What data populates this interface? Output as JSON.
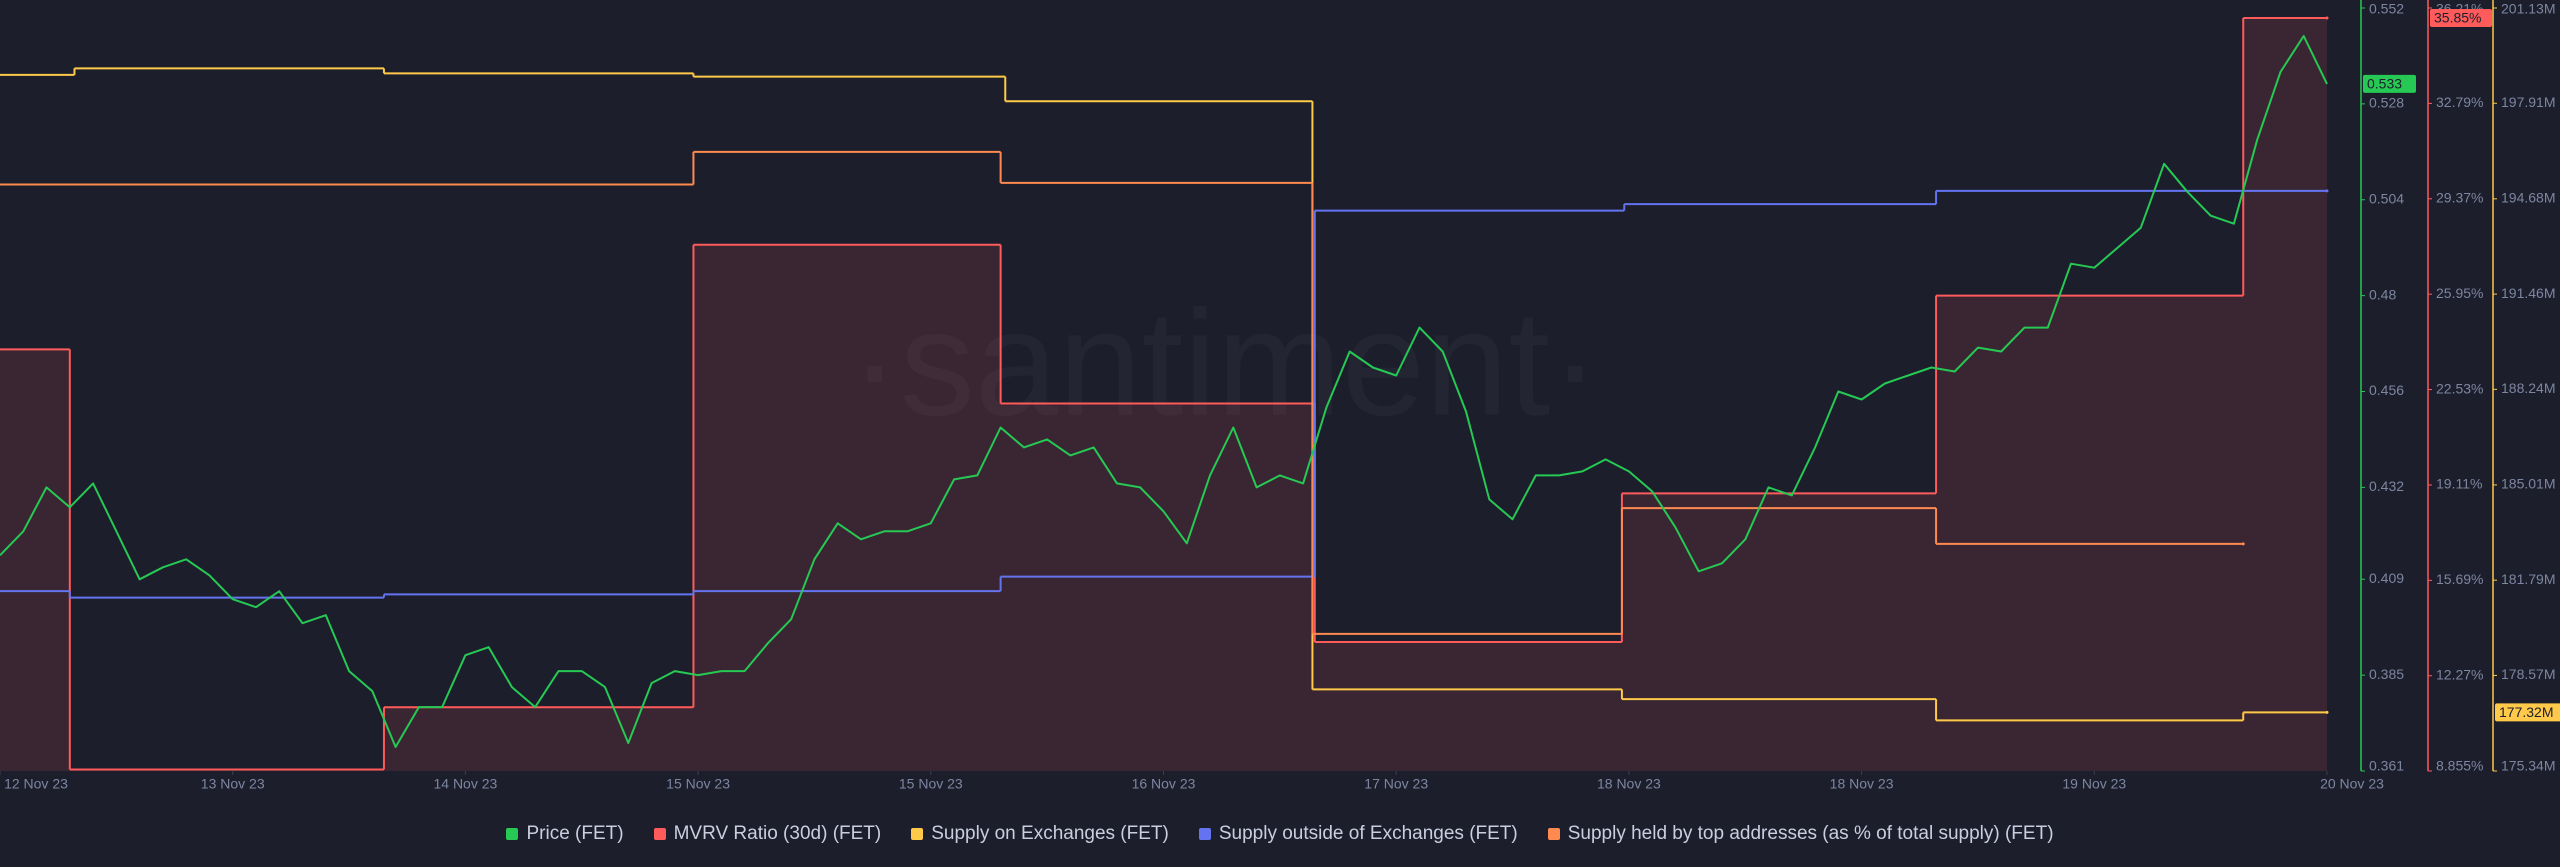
{
  "chart_data": {
    "type": "multi-axis-line",
    "watermark": "·santiment·",
    "xlim": [
      0,
      10
    ],
    "xticks": [
      {
        "value": 0,
        "label": "12 Nov 23"
      },
      {
        "value": 1,
        "label": "13 Nov 23"
      },
      {
        "value": 2,
        "label": "14 Nov 23"
      },
      {
        "value": 3,
        "label": "15 Nov 23"
      },
      {
        "value": 4,
        "label": "15 Nov 23"
      },
      {
        "value": 5,
        "label": "16 Nov 23"
      },
      {
        "value": 6,
        "label": "17 Nov 23"
      },
      {
        "value": 7,
        "label": "18 Nov 23"
      },
      {
        "value": 8,
        "label": "18 Nov 23"
      },
      {
        "value": 9,
        "label": "19 Nov 23"
      },
      {
        "value": 10,
        "label": "20 Nov 23"
      }
    ],
    "ylim": [
      0.361,
      0.552
    ],
    "yticks": [
      0.552,
      0.528,
      0.504,
      0.48,
      0.456,
      0.432,
      0.409,
      0.385,
      0.361
    ],
    "y2lim": [
      8.855,
      36.21
    ],
    "y2ticks": [
      {
        "value": 36.21,
        "label": "36.21%"
      },
      {
        "value": 32.79,
        "label": "32.79%"
      },
      {
        "value": 29.37,
        "label": "29.37%"
      },
      {
        "value": 25.95,
        "label": "25.95%"
      },
      {
        "value": 22.53,
        "label": "22.53%"
      },
      {
        "value": 19.11,
        "label": "19.11%"
      },
      {
        "value": 15.69,
        "label": "15.69%"
      },
      {
        "value": 12.27,
        "label": "12.27%"
      },
      {
        "value": 8.855,
        "label": "8.855%"
      }
    ],
    "y3lim": [
      175.34,
      201.13
    ],
    "y3ticks": [
      {
        "value": 201.13,
        "label": "201.13M"
      },
      {
        "value": 197.91,
        "label": "197.91M"
      },
      {
        "value": 194.68,
        "label": "194.68M"
      },
      {
        "value": 191.46,
        "label": "191.46M"
      },
      {
        "value": 188.24,
        "label": "188.24M"
      },
      {
        "value": 185.01,
        "label": "185.01M"
      },
      {
        "value": 181.79,
        "label": "181.79M"
      },
      {
        "value": 178.57,
        "label": "178.57M"
      },
      {
        "value": 175.34,
        "label": "175.34M"
      }
    ],
    "series": [
      {
        "name": "Price (FET)",
        "color": "#26c953",
        "axis": "y",
        "step": false,
        "last_value_label": "0.533",
        "x": [
          0,
          0.1,
          0.2,
          0.3,
          0.4,
          0.5,
          0.6,
          0.7,
          0.8,
          0.9,
          1,
          1.1,
          1.2,
          1.3,
          1.4,
          1.5,
          1.6,
          1.7,
          1.8,
          1.9,
          2,
          2.1,
          2.2,
          2.3,
          2.4,
          2.5,
          2.6,
          2.7,
          2.8,
          2.9,
          3,
          3.1,
          3.2,
          3.3,
          3.4,
          3.5,
          3.6,
          3.7,
          3.8,
          3.9,
          4,
          4.1,
          4.2,
          4.3,
          4.4,
          4.5,
          4.6,
          4.7,
          4.8,
          4.9,
          5,
          5.1,
          5.2,
          5.3,
          5.4,
          5.5,
          5.6,
          5.7,
          5.8,
          5.9,
          6,
          6.1,
          6.2,
          6.3,
          6.4,
          6.5,
          6.6,
          6.7,
          6.8,
          6.9,
          7,
          7.1,
          7.2,
          7.3,
          7.4,
          7.5,
          7.6,
          7.7,
          7.8,
          7.9,
          8,
          8.1,
          8.2,
          8.3,
          8.4,
          8.5,
          8.6,
          8.7,
          8.8,
          8.9,
          9,
          9.1,
          9.2,
          9.3,
          9.4,
          9.5,
          9.6,
          9.7,
          9.8,
          9.9,
          10
        ],
        "values": [
          0.415,
          0.421,
          0.432,
          0.427,
          0.433,
          0.421,
          0.409,
          0.412,
          0.414,
          0.41,
          0.404,
          0.402,
          0.406,
          0.398,
          0.4,
          0.386,
          0.381,
          0.367,
          0.377,
          0.377,
          0.39,
          0.392,
          0.382,
          0.377,
          0.386,
          0.386,
          0.382,
          0.368,
          0.383,
          0.386,
          0.385,
          0.386,
          0.386,
          0.393,
          0.399,
          0.414,
          0.423,
          0.419,
          0.421,
          0.421,
          0.423,
          0.434,
          0.435,
          0.447,
          0.442,
          0.444,
          0.44,
          0.442,
          0.433,
          0.432,
          0.426,
          0.418,
          0.435,
          0.447,
          0.432,
          0.435,
          0.433,
          0.452,
          0.466,
          0.462,
          0.46,
          0.472,
          0.466,
          0.451,
          0.429,
          0.424,
          0.435,
          0.435,
          0.436,
          0.439,
          0.436,
          0.431,
          0.422,
          0.411,
          0.413,
          0.419,
          0.432,
          0.43,
          0.442,
          0.456,
          0.454,
          0.458,
          0.46,
          0.462,
          0.461,
          0.467,
          0.466,
          0.472,
          0.472,
          0.488,
          0.487,
          0.492,
          0.497,
          0.513,
          0.506,
          0.5,
          0.498,
          0.519,
          0.536,
          0.545,
          0.533
        ]
      },
      {
        "name": "MVRV Ratio (30d) (FET)",
        "color": "#ff5b5b",
        "axis": "y2",
        "step": true,
        "area": true,
        "last_value_label": "35.85%",
        "x": [
          0,
          0.3,
          1.65,
          2.98,
          4.3,
          5.65,
          6.97,
          8.32,
          9.64,
          10
        ],
        "values": [
          23.97,
          8.91,
          11.14,
          27.72,
          22.03,
          13.48,
          18.81,
          25.9,
          35.85,
          35.85
        ]
      },
      {
        "name": "Supply on Exchanges (FET)",
        "color": "#ffc94a",
        "axis": "y3",
        "step": true,
        "last_value_label": "177.32M",
        "x": [
          0,
          0.32,
          1.65,
          2.98,
          4.32,
          5.64,
          6.97,
          8.32,
          9.64,
          10
        ],
        "values": [
          198.87,
          199.09,
          198.92,
          198.81,
          197.98,
          178.1,
          177.77,
          177.05,
          177.32,
          177.32
        ]
      },
      {
        "name": "Supply outside of Exchanges (FET)",
        "color": "#6474f0",
        "axis": "y3",
        "step": true,
        "x": [
          0,
          0.3,
          1.65,
          2.98,
          4.3,
          5.65,
          6.98,
          8.32,
          10
        ],
        "values": [
          181.42,
          181.2,
          181.31,
          181.42,
          181.91,
          194.28,
          194.5,
          194.95,
          194.95
        ]
      },
      {
        "name": "Supply held by top addresses (as % of total supply) (FET)",
        "color": "#ff8a50",
        "axis": "y2",
        "step": true,
        "x": [
          0,
          2.98,
          4.3,
          5.64,
          6.97,
          8.32,
          9.64
        ],
        "values": [
          29.88,
          31.05,
          29.94,
          13.77,
          18.28,
          17.0,
          17.0
        ]
      }
    ]
  }
}
